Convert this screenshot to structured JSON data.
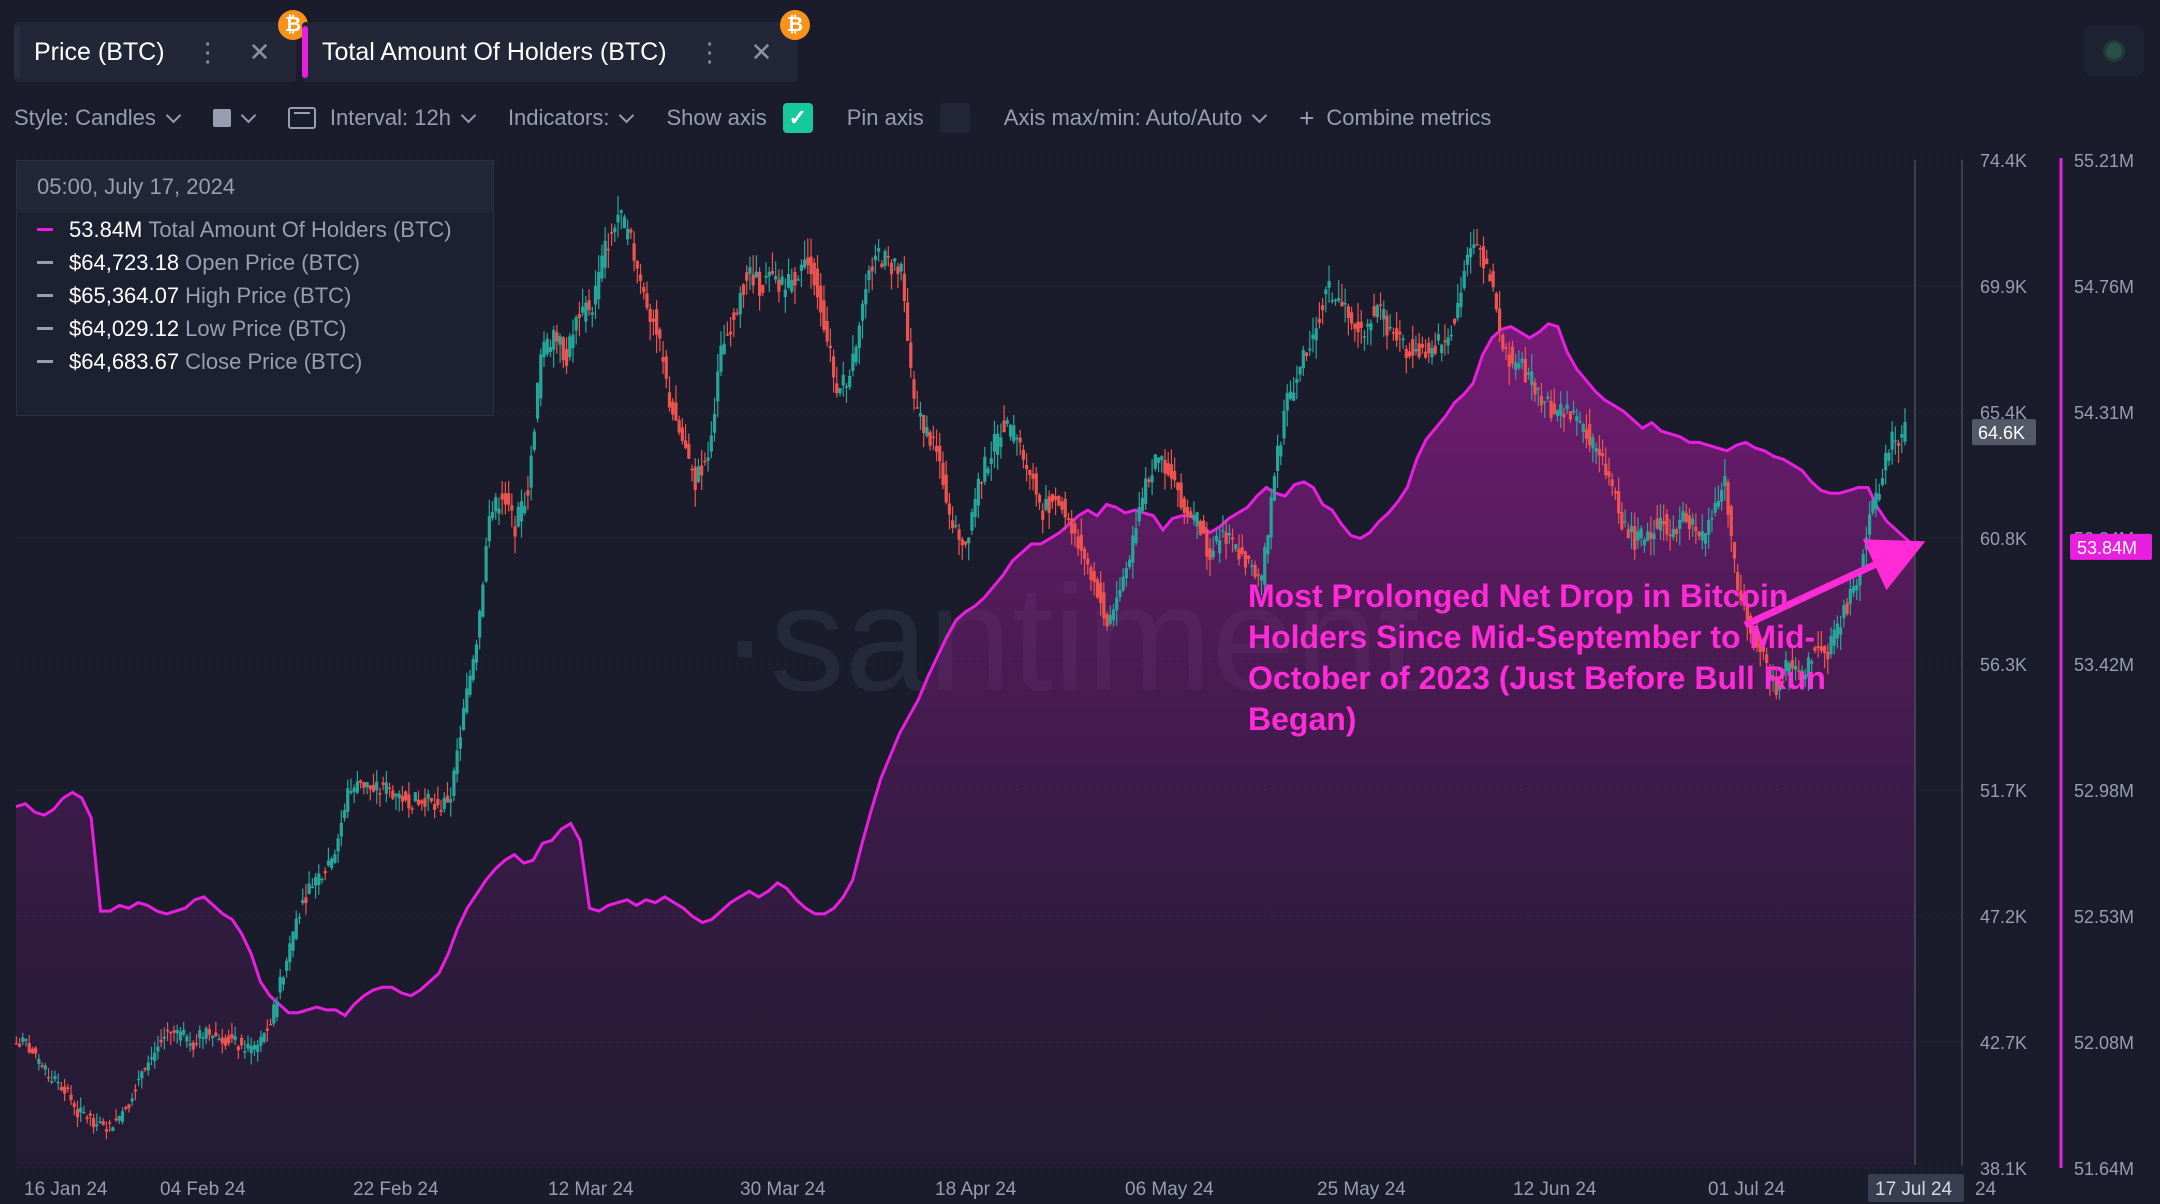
{
  "tabs": [
    {
      "label": "Price (BTC)",
      "color": "#2a2d3f"
    },
    {
      "label": "Total Amount Of Holders (BTC)",
      "color": "#e91fe0"
    }
  ],
  "icons": {
    "coin": "bitcoin-icon",
    "more": "more-vertical-icon",
    "close": "close-icon",
    "status": "status-dot-icon"
  },
  "toolbar": {
    "style": "Style: Candles",
    "interval": "Interval: 12h",
    "indicators": "Indicators:",
    "show_axis": "Show axis",
    "pin_axis": "Pin axis",
    "axis_range": "Axis max/min: Auto/Auto",
    "combine": "Combine metrics"
  },
  "tooltip": {
    "date": "05:00, July 17, 2024",
    "rows": [
      {
        "value": "53.84M",
        "name": "Total Amount Of Holders (BTC)",
        "color": "#e91fe0"
      },
      {
        "value": "$64,723.18",
        "name": "Open Price (BTC)",
        "color": "#9a9cb0"
      },
      {
        "value": "$65,364.07",
        "name": "High Price (BTC)",
        "color": "#9a9cb0"
      },
      {
        "value": "$64,029.12",
        "name": "Low Price (BTC)",
        "color": "#9a9cb0"
      },
      {
        "value": "$64,683.67",
        "name": "Close Price (BTC)",
        "color": "#9a9cb0"
      }
    ]
  },
  "annotation": "Most Prolonged Net Drop in Bitcoin Holders Since Mid-September to Mid-October of 2023 (Just Before Bull Run Began)",
  "watermark": "·santiment",
  "chart_data": {
    "type": "line",
    "interval": "12h",
    "x_tick_labels": [
      "16 Jan 24",
      "04 Feb 24",
      "22 Feb 24",
      "12 Mar 24",
      "30 Mar 24",
      "18 Apr 24",
      "06 May 24",
      "25 May 24",
      "12 Jun 24",
      "01 Jul 24",
      "17 Jul 24",
      "24"
    ],
    "price_axis": {
      "ticks": [
        "74.4K",
        "69.9K",
        "65.4K",
        "60.8K",
        "56.3K",
        "51.7K",
        "47.2K",
        "42.7K",
        "38.1K"
      ],
      "range": [
        38100,
        74400
      ],
      "current": "64.6K"
    },
    "holders_axis": {
      "ticks": [
        "55.21M",
        "54.76M",
        "54.31M",
        "53.84M",
        "53.42M",
        "52.98M",
        "52.53M",
        "52.08M",
        "51.64M"
      ],
      "range": [
        51.64,
        55.21
      ],
      "current": "53.84M"
    },
    "series": [
      {
        "name": "Price (BTC)",
        "kind": "candles",
        "color_up": "#26a69a",
        "color_down": "#ef5350",
        "close": [
          42600,
          41800,
          41300,
          41000,
          40100,
          39900,
          39500,
          39800,
          40500,
          41700,
          42300,
          43000,
          42900,
          42600,
          43100,
          42800,
          42700,
          42400,
          42500,
          43300,
          45200,
          47100,
          48200,
          48800,
          49500,
          51600,
          52000,
          51700,
          51800,
          51500,
          51300,
          51400,
          51000,
          51500,
          54500,
          57200,
          61500,
          62400,
          61200,
          62600,
          67300,
          68200,
          67300,
          68900,
          69200,
          71200,
          72500,
          71400,
          69600,
          68300,
          65700,
          64300,
          62800,
          63900,
          67400,
          68900,
          70300,
          69900,
          70100,
          69800,
          70400,
          70700,
          68600,
          66000,
          66800,
          69200,
          71100,
          70700,
          70300,
          65500,
          64600,
          63500,
          61200,
          60600,
          62800,
          63900,
          64900,
          64400,
          63100,
          61800,
          62300,
          61500,
          60400,
          59300,
          57700,
          58900,
          60600,
          62900,
          63600,
          63200,
          61900,
          61400,
          60100,
          61000,
          60400,
          59800,
          59100,
          63200,
          65800,
          66900,
          67900,
          69800,
          69300,
          68500,
          68400,
          69200,
          68200,
          67600,
          67800,
          67300,
          67900,
          68700,
          70900,
          71300,
          69600,
          67400,
          67100,
          66400,
          65800,
          65200,
          65300,
          64700,
          64000,
          62900,
          61400,
          60700,
          61000,
          61400,
          61100,
          61600,
          60700,
          61700,
          62800,
          58900,
          57400,
          56600,
          55300,
          56400,
          55700,
          56900,
          56600,
          57900,
          58900,
          60900,
          62700,
          64300,
          64600
        ],
        "y_range": [
          38100,
          74400
        ]
      },
      {
        "name": "Total Amount Of Holders (BTC)",
        "kind": "area",
        "color": "#e91fe0",
        "values": [
          52.92,
          52.93,
          52.9,
          52.89,
          52.91,
          52.95,
          52.97,
          52.95,
          52.88,
          52.55,
          52.55,
          52.57,
          52.56,
          52.58,
          52.57,
          52.55,
          52.54,
          52.55,
          52.56,
          52.59,
          52.6,
          52.57,
          52.54,
          52.52,
          52.47,
          52.4,
          52.3,
          52.25,
          52.22,
          52.19,
          52.19,
          52.2,
          52.21,
          52.2,
          52.2,
          52.18,
          52.22,
          52.25,
          52.27,
          52.28,
          52.28,
          52.26,
          52.25,
          52.27,
          52.3,
          52.33,
          52.4,
          52.49,
          52.56,
          52.61,
          52.66,
          52.7,
          52.73,
          52.75,
          52.72,
          52.73,
          52.79,
          52.8,
          52.84,
          52.86,
          52.8,
          52.56,
          52.55,
          52.57,
          52.58,
          52.59,
          52.57,
          52.59,
          52.58,
          52.6,
          52.58,
          52.56,
          52.53,
          52.51,
          52.52,
          52.55,
          52.58,
          52.6,
          52.62,
          52.6,
          52.62,
          52.65,
          52.63,
          52.59,
          52.56,
          52.54,
          52.54,
          52.56,
          52.6,
          52.66,
          52.79,
          52.91,
          53.02,
          53.1,
          53.18,
          53.24,
          53.3,
          53.38,
          53.45,
          53.52,
          53.58,
          53.61,
          53.63,
          53.66,
          53.7,
          53.74,
          53.79,
          53.82,
          53.85,
          53.85,
          53.87,
          53.89,
          53.92,
          53.95,
          53.97,
          53.95,
          53.99,
          53.98,
          53.96,
          53.97,
          53.96,
          53.95,
          53.9,
          53.94,
          53.95,
          53.95,
          53.92,
          53.89,
          53.91,
          53.94,
          53.96,
          53.98,
          54.02,
          54.05,
          54.03,
          54.02,
          54.06,
          54.07,
          54.05,
          53.99,
          53.97,
          53.92,
          53.88,
          53.87,
          53.89,
          53.93,
          53.96,
          54.0,
          54.05,
          54.15,
          54.22,
          54.26,
          54.3,
          54.35,
          54.38,
          54.42,
          54.52,
          54.58,
          54.61,
          54.62,
          54.6,
          54.58,
          54.6,
          54.63,
          54.62,
          54.53,
          54.47,
          54.43,
          54.39,
          54.36,
          54.34,
          54.32,
          54.29,
          54.26,
          54.28,
          54.25,
          54.24,
          54.23,
          54.21,
          54.21,
          54.2,
          54.19,
          54.18,
          54.2,
          54.21,
          54.19,
          54.18,
          54.16,
          54.15,
          54.13,
          54.11,
          54.07,
          54.04,
          54.03,
          54.03,
          54.04,
          54.05,
          54.05,
          53.98,
          53.93,
          53.9,
          53.87,
          53.84
        ],
        "y_range": [
          51.64,
          55.21
        ]
      }
    ]
  }
}
